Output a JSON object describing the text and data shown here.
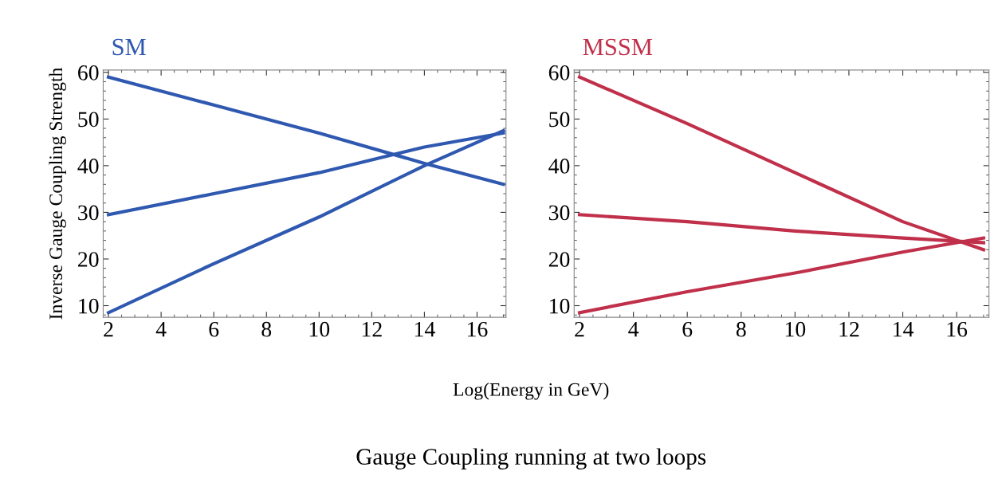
{
  "chart_data": [
    {
      "type": "line",
      "title": "SM",
      "ylabel": "Inverse Gauge Coupling Strength",
      "xlabel": "Log(Energy in GeV)",
      "annotations": [
        "Gauge Coupling running at two loops"
      ],
      "xlim": [
        1.8,
        17.1
      ],
      "ylim": [
        7.5,
        60.5
      ],
      "xticks": [
        2,
        4,
        6,
        8,
        10,
        12,
        14,
        16
      ],
      "yticks": [
        10,
        20,
        30,
        40,
        50,
        60
      ],
      "series": [
        {
          "color": "#2f58b0",
          "x": [
            2,
            6,
            10,
            14,
            17
          ],
          "values": [
            59,
            53,
            47,
            40.5,
            36
          ]
        },
        {
          "color": "#2f58b0",
          "x": [
            2,
            6,
            10,
            14,
            17
          ],
          "values": [
            29.5,
            34,
            38.5,
            44,
            47
          ]
        },
        {
          "color": "#2f58b0",
          "x": [
            2,
            6,
            10,
            14,
            17
          ],
          "values": [
            8.5,
            19,
            29,
            40,
            47.5
          ]
        }
      ]
    },
    {
      "type": "line",
      "title": "MSSM",
      "xlim": [
        1.8,
        17.2
      ],
      "ylim": [
        7.5,
        60.5
      ],
      "xticks": [
        2,
        4,
        6,
        8,
        10,
        12,
        14,
        16
      ],
      "yticks": [
        10,
        20,
        30,
        40,
        50,
        60
      ],
      "series": [
        {
          "color": "#c0304a",
          "x": [
            2,
            6,
            10,
            14,
            17
          ],
          "values": [
            59,
            49,
            38.5,
            28,
            22
          ]
        },
        {
          "color": "#c0304a",
          "x": [
            2,
            6,
            10,
            14,
            17
          ],
          "values": [
            29.5,
            28,
            26,
            24.5,
            23.5
          ]
        },
        {
          "color": "#c0304a",
          "x": [
            2,
            6,
            10,
            14,
            17
          ],
          "values": [
            8.5,
            13,
            17,
            21.5,
            24.5
          ]
        }
      ]
    }
  ]
}
